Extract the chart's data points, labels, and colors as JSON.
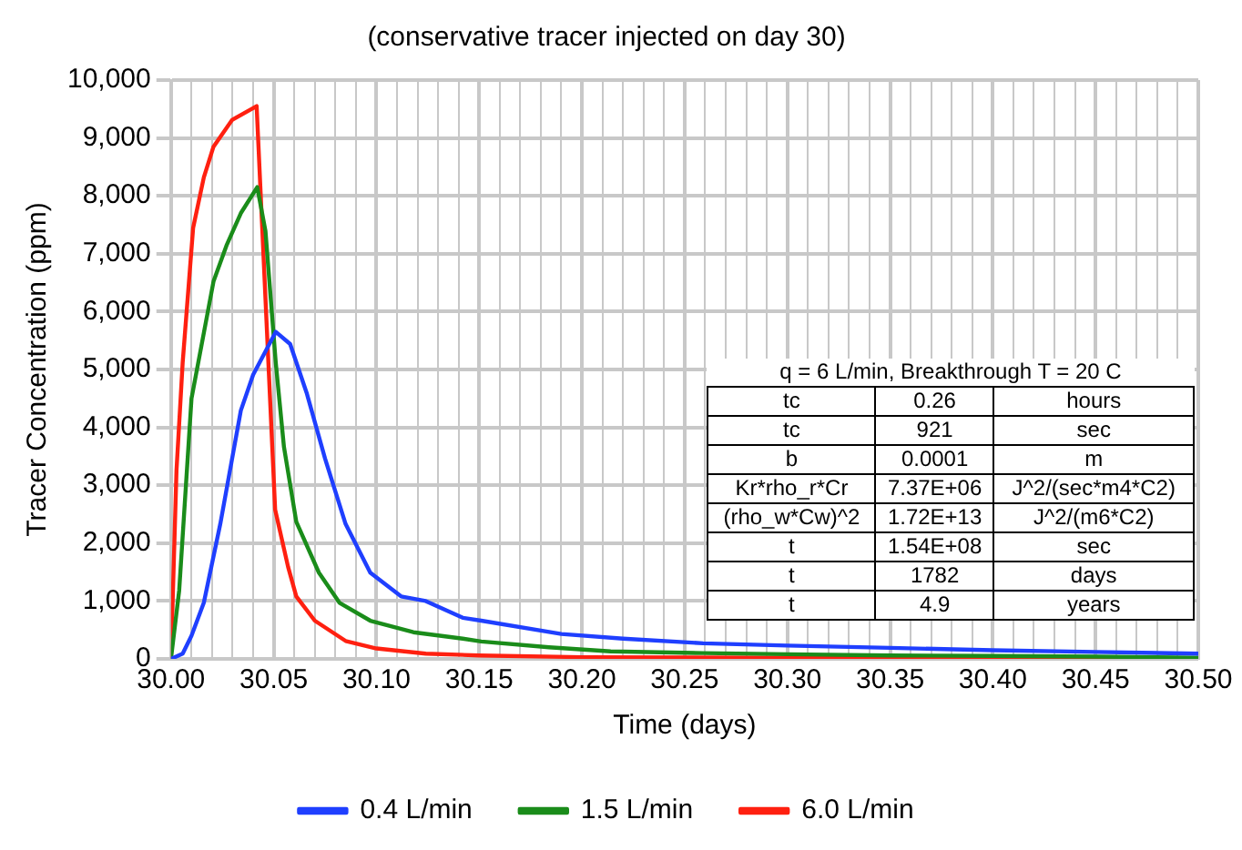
{
  "chart_data": {
    "type": "line",
    "title": "(conservative tracer injected on day 30)",
    "xlabel": "Time (days)",
    "ylabel": "Tracer Concentration (ppm)",
    "series": [
      {
        "name": "0.4 L/min",
        "color": "#1f3fff",
        "x": [
          30,
          30.0057,
          30.01,
          30.016,
          30.024,
          30.034,
          30.04,
          30.051,
          30.058,
          30.066,
          30.075,
          30.085,
          30.097,
          30.112,
          30.124,
          30.142,
          30.151,
          30.19,
          30.22,
          30.259,
          30.3,
          30.35,
          30.4,
          30.45,
          30.5
        ],
        "values": [
          0,
          90,
          400,
          970,
          2330,
          4290,
          4910,
          5650,
          5440,
          4600,
          3460,
          2330,
          1490,
          1080,
          1000,
          710,
          660,
          430,
          350,
          270,
          230,
          190,
          150,
          120,
          90
        ]
      },
      {
        "name": "1.5 L/min",
        "color": "#1a8c1a",
        "x": [
          30,
          30.004,
          30.01,
          30.0207,
          30.027,
          30.034,
          30.042,
          30.046,
          30.051,
          30.055,
          30.061,
          30.072,
          30.082,
          30.097,
          30.118,
          30.142,
          30.151,
          30.184,
          30.214,
          30.259,
          30.3,
          30.35,
          30.4,
          30.45,
          30.5
        ],
        "values": [
          0,
          1180,
          4500,
          6520,
          7140,
          7700,
          8150,
          7390,
          5120,
          3660,
          2370,
          1490,
          970,
          660,
          460,
          350,
          300,
          200,
          130,
          100,
          80,
          60,
          50,
          40,
          20
        ]
      },
      {
        "name": "6.0 L/min",
        "color": "#ff2010",
        "x": [
          30,
          30.0027,
          30.0057,
          30.0108,
          30.016,
          30.0207,
          30.0297,
          30.0417,
          30.0507,
          30.057,
          30.061,
          30.07,
          30.085,
          30.1,
          30.124,
          30.15,
          30.2,
          30.3,
          30.4,
          30.5
        ],
        "values": [
          0,
          3260,
          5120,
          7450,
          8320,
          8850,
          9310,
          9550,
          2580,
          1590,
          1080,
          660,
          310,
          180,
          90,
          60,
          30,
          20,
          10,
          0
        ]
      }
    ],
    "xlim": [
      30,
      30.5
    ],
    "xticks": [
      {
        "value": 30,
        "label": "30.00"
      },
      {
        "value": 30.01,
        "label": null
      },
      {
        "value": 30.02,
        "label": null
      },
      {
        "value": 30.03,
        "label": null
      },
      {
        "value": 30.04,
        "label": null
      },
      {
        "value": 30.05,
        "label": "30.05"
      },
      {
        "value": 30.06,
        "label": null
      },
      {
        "value": 30.07,
        "label": null
      },
      {
        "value": 30.08,
        "label": null
      },
      {
        "value": 30.09,
        "label": null
      },
      {
        "value": 30.1,
        "label": "30.10"
      },
      {
        "value": 30.11,
        "label": null
      },
      {
        "value": 30.12,
        "label": null
      },
      {
        "value": 30.13,
        "label": null
      },
      {
        "value": 30.14,
        "label": null
      },
      {
        "value": 30.15,
        "label": "30.15"
      },
      {
        "value": 30.16,
        "label": null
      },
      {
        "value": 30.17,
        "label": null
      },
      {
        "value": 30.18,
        "label": null
      },
      {
        "value": 30.19,
        "label": null
      },
      {
        "value": 30.2,
        "label": "30.20"
      },
      {
        "value": 30.21,
        "label": null
      },
      {
        "value": 30.22,
        "label": null
      },
      {
        "value": 30.23,
        "label": null
      },
      {
        "value": 30.24,
        "label": null
      },
      {
        "value": 30.25,
        "label": "30.25"
      },
      {
        "value": 30.26,
        "label": null
      },
      {
        "value": 30.27,
        "label": null
      },
      {
        "value": 30.28,
        "label": null
      },
      {
        "value": 30.29,
        "label": null
      },
      {
        "value": 30.3,
        "label": "30.30"
      },
      {
        "value": 30.31,
        "label": null
      },
      {
        "value": 30.32,
        "label": null
      },
      {
        "value": 30.33,
        "label": null
      },
      {
        "value": 30.34,
        "label": null
      },
      {
        "value": 30.35,
        "label": "30.35"
      },
      {
        "value": 30.36,
        "label": null
      },
      {
        "value": 30.37,
        "label": null
      },
      {
        "value": 30.38,
        "label": null
      },
      {
        "value": 30.39,
        "label": null
      },
      {
        "value": 30.4,
        "label": "30.40"
      },
      {
        "value": 30.41,
        "label": null
      },
      {
        "value": 30.42,
        "label": null
      },
      {
        "value": 30.43,
        "label": null
      },
      {
        "value": 30.44,
        "label": null
      },
      {
        "value": 30.45,
        "label": "30.45"
      },
      {
        "value": 30.46,
        "label": null
      },
      {
        "value": 30.47,
        "label": null
      },
      {
        "value": 30.48,
        "label": null
      },
      {
        "value": 30.49,
        "label": null
      },
      {
        "value": 30.5,
        "label": "30.50"
      }
    ],
    "ylim": [
      0,
      10000
    ],
    "yticks": [
      0,
      {
        "value": 1000,
        "label": "1,000"
      },
      {
        "value": 2000,
        "label": "2,000"
      },
      {
        "value": 3000,
        "label": "3,000"
      },
      {
        "value": 4000,
        "label": "4,000"
      },
      {
        "value": 5000,
        "label": "5,000"
      },
      {
        "value": 6000,
        "label": "6,000"
      },
      {
        "value": 7000,
        "label": "7,000"
      },
      {
        "value": 8000,
        "label": "8,000"
      },
      {
        "value": 9000,
        "label": "9,000"
      },
      {
        "value": 10000,
        "label": "10,000"
      }
    ],
    "grid": true,
    "legend": "bottom",
    "marker": "none",
    "line_style": "solid",
    "annotations": [
      "q = 6 L/min, Breakthrough T = 20 C",
      "tc",
      "0.26",
      "hours",
      "tc",
      "921",
      "sec",
      "b",
      "0.0001",
      "m",
      "Kr*rho_r*Cr",
      "7.37E+06",
      "J^2/(sec*m4*C2)",
      "(rho_w*Cw)^2",
      "1.72E+13",
      "J^2/(m6*C2)",
      "t",
      "1.54E+08",
      "sec",
      "t",
      "1782",
      "days",
      "t",
      "4.9",
      "years"
    ]
  }
}
